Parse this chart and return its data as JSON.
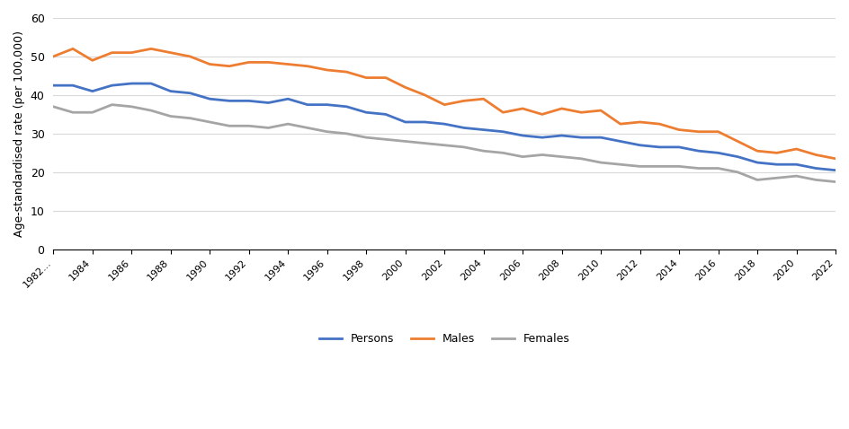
{
  "years": [
    1982,
    1983,
    1984,
    1985,
    1986,
    1987,
    1988,
    1989,
    1990,
    1991,
    1992,
    1993,
    1994,
    1995,
    1996,
    1997,
    1998,
    1999,
    2000,
    2001,
    2002,
    2003,
    2004,
    2005,
    2006,
    2007,
    2008,
    2009,
    2010,
    2011,
    2012,
    2013,
    2014,
    2015,
    2016,
    2017,
    2018,
    2019,
    2020,
    2021,
    2022
  ],
  "persons": [
    42.5,
    42.5,
    41.0,
    42.5,
    43.0,
    43.0,
    41.0,
    40.5,
    39.0,
    38.5,
    38.5,
    38.0,
    39.0,
    37.5,
    37.5,
    37.0,
    35.5,
    35.0,
    33.0,
    33.0,
    32.5,
    31.5,
    31.0,
    30.5,
    29.5,
    29.0,
    29.5,
    29.0,
    29.0,
    28.0,
    27.0,
    26.5,
    26.5,
    25.5,
    25.0,
    24.0,
    22.5,
    22.0,
    22.0,
    21.0,
    20.5
  ],
  "males": [
    50.0,
    52.0,
    49.0,
    51.0,
    51.0,
    52.0,
    51.0,
    50.0,
    48.0,
    47.5,
    48.5,
    48.5,
    48.0,
    47.5,
    46.5,
    46.0,
    44.5,
    44.5,
    42.0,
    40.0,
    37.5,
    38.5,
    39.0,
    35.5,
    36.5,
    35.0,
    36.5,
    35.5,
    36.0,
    32.5,
    33.0,
    32.5,
    31.0,
    30.5,
    30.5,
    28.0,
    25.5,
    25.0,
    26.0,
    24.5,
    23.5
  ],
  "females": [
    37.0,
    35.5,
    35.5,
    37.5,
    37.0,
    36.0,
    34.5,
    34.0,
    33.0,
    32.0,
    32.0,
    31.5,
    32.5,
    31.5,
    30.5,
    30.0,
    29.0,
    28.5,
    28.0,
    27.5,
    27.0,
    26.5,
    25.5,
    25.0,
    24.0,
    24.5,
    24.0,
    23.5,
    22.5,
    22.0,
    21.5,
    21.5,
    21.5,
    21.0,
    21.0,
    20.0,
    18.0,
    18.5,
    19.0,
    18.0,
    17.5
  ],
  "persons_color": "#4472C4",
  "males_color": "#ED7D31",
  "females_color": "#A5A5A5",
  "ylabel": "Age-standardised rate (per 100,000)",
  "ylim": [
    0,
    60
  ],
  "yticks": [
    0,
    10,
    20,
    30,
    40,
    50,
    60
  ],
  "xtick_years": [
    1982,
    1984,
    1986,
    1988,
    1990,
    1992,
    1994,
    1996,
    1998,
    2000,
    2002,
    2004,
    2006,
    2008,
    2010,
    2012,
    2014,
    2016,
    2018,
    2020,
    2022
  ],
  "first_xtick_label": "1982...",
  "legend_labels": [
    "Persons",
    "Males",
    "Females"
  ],
  "line_width": 2.0,
  "background_color": "#FFFFFF",
  "grid_color": "#D9D9D9"
}
